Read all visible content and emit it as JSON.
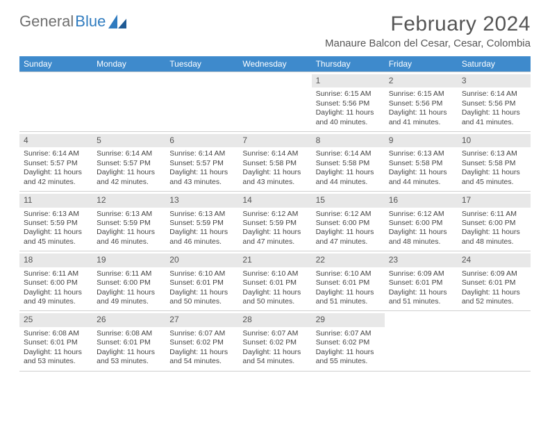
{
  "logo": {
    "text1": "General",
    "text2": "Blue"
  },
  "title": "February 2024",
  "location": "Manaure Balcon del Cesar, Cesar, Colombia",
  "colors": {
    "header_bg": "#3e8acc",
    "header_text": "#ffffff",
    "daynum_bg": "#e8e8e8",
    "body_text": "#444444",
    "title_text": "#555555",
    "logo_gray": "#6f6f6f",
    "logo_blue": "#2f7bbf"
  },
  "weekdays": [
    "Sunday",
    "Monday",
    "Tuesday",
    "Wednesday",
    "Thursday",
    "Friday",
    "Saturday"
  ],
  "weeks": [
    [
      null,
      null,
      null,
      null,
      {
        "n": "1",
        "sr": "6:15 AM",
        "ss": "5:56 PM",
        "dl": "11 hours and 40 minutes."
      },
      {
        "n": "2",
        "sr": "6:15 AM",
        "ss": "5:56 PM",
        "dl": "11 hours and 41 minutes."
      },
      {
        "n": "3",
        "sr": "6:14 AM",
        "ss": "5:56 PM",
        "dl": "11 hours and 41 minutes."
      }
    ],
    [
      {
        "n": "4",
        "sr": "6:14 AM",
        "ss": "5:57 PM",
        "dl": "11 hours and 42 minutes."
      },
      {
        "n": "5",
        "sr": "6:14 AM",
        "ss": "5:57 PM",
        "dl": "11 hours and 42 minutes."
      },
      {
        "n": "6",
        "sr": "6:14 AM",
        "ss": "5:57 PM",
        "dl": "11 hours and 43 minutes."
      },
      {
        "n": "7",
        "sr": "6:14 AM",
        "ss": "5:58 PM",
        "dl": "11 hours and 43 minutes."
      },
      {
        "n": "8",
        "sr": "6:14 AM",
        "ss": "5:58 PM",
        "dl": "11 hours and 44 minutes."
      },
      {
        "n": "9",
        "sr": "6:13 AM",
        "ss": "5:58 PM",
        "dl": "11 hours and 44 minutes."
      },
      {
        "n": "10",
        "sr": "6:13 AM",
        "ss": "5:58 PM",
        "dl": "11 hours and 45 minutes."
      }
    ],
    [
      {
        "n": "11",
        "sr": "6:13 AM",
        "ss": "5:59 PM",
        "dl": "11 hours and 45 minutes."
      },
      {
        "n": "12",
        "sr": "6:13 AM",
        "ss": "5:59 PM",
        "dl": "11 hours and 46 minutes."
      },
      {
        "n": "13",
        "sr": "6:13 AM",
        "ss": "5:59 PM",
        "dl": "11 hours and 46 minutes."
      },
      {
        "n": "14",
        "sr": "6:12 AM",
        "ss": "5:59 PM",
        "dl": "11 hours and 47 minutes."
      },
      {
        "n": "15",
        "sr": "6:12 AM",
        "ss": "6:00 PM",
        "dl": "11 hours and 47 minutes."
      },
      {
        "n": "16",
        "sr": "6:12 AM",
        "ss": "6:00 PM",
        "dl": "11 hours and 48 minutes."
      },
      {
        "n": "17",
        "sr": "6:11 AM",
        "ss": "6:00 PM",
        "dl": "11 hours and 48 minutes."
      }
    ],
    [
      {
        "n": "18",
        "sr": "6:11 AM",
        "ss": "6:00 PM",
        "dl": "11 hours and 49 minutes."
      },
      {
        "n": "19",
        "sr": "6:11 AM",
        "ss": "6:00 PM",
        "dl": "11 hours and 49 minutes."
      },
      {
        "n": "20",
        "sr": "6:10 AM",
        "ss": "6:01 PM",
        "dl": "11 hours and 50 minutes."
      },
      {
        "n": "21",
        "sr": "6:10 AM",
        "ss": "6:01 PM",
        "dl": "11 hours and 50 minutes."
      },
      {
        "n": "22",
        "sr": "6:10 AM",
        "ss": "6:01 PM",
        "dl": "11 hours and 51 minutes."
      },
      {
        "n": "23",
        "sr": "6:09 AM",
        "ss": "6:01 PM",
        "dl": "11 hours and 51 minutes."
      },
      {
        "n": "24",
        "sr": "6:09 AM",
        "ss": "6:01 PM",
        "dl": "11 hours and 52 minutes."
      }
    ],
    [
      {
        "n": "25",
        "sr": "6:08 AM",
        "ss": "6:01 PM",
        "dl": "11 hours and 53 minutes."
      },
      {
        "n": "26",
        "sr": "6:08 AM",
        "ss": "6:01 PM",
        "dl": "11 hours and 53 minutes."
      },
      {
        "n": "27",
        "sr": "6:07 AM",
        "ss": "6:02 PM",
        "dl": "11 hours and 54 minutes."
      },
      {
        "n": "28",
        "sr": "6:07 AM",
        "ss": "6:02 PM",
        "dl": "11 hours and 54 minutes."
      },
      {
        "n": "29",
        "sr": "6:07 AM",
        "ss": "6:02 PM",
        "dl": "11 hours and 55 minutes."
      },
      null,
      null
    ]
  ],
  "labels": {
    "sunrise": "Sunrise: ",
    "sunset": "Sunset: ",
    "daylight": "Daylight: "
  }
}
